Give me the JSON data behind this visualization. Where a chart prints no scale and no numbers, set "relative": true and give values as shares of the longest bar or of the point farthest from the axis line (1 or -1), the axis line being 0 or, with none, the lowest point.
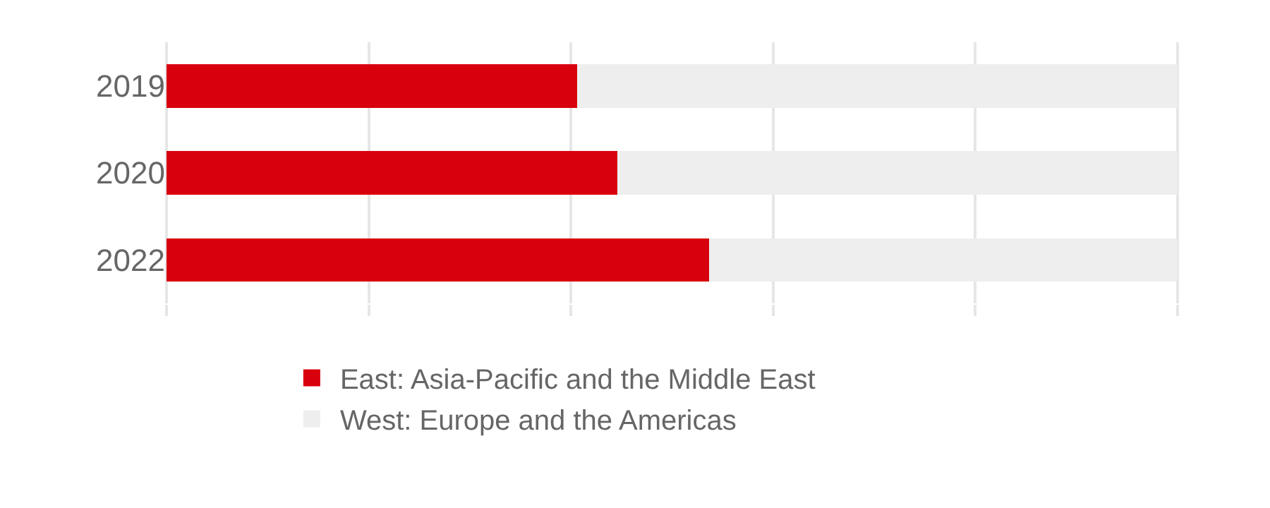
{
  "chart_data": {
    "type": "bar",
    "orientation": "horizontal",
    "stacked": true,
    "relative": true,
    "categories": [
      "2019",
      "2020",
      "2022"
    ],
    "series": [
      {
        "name": "East: Asia-Pacific and the Middle East",
        "color": "#d9000d",
        "values": [
          0.406,
          0.446,
          0.537
        ]
      },
      {
        "name": "West: Europe and the Americas",
        "color": "#eeeeee",
        "values": [
          0.594,
          0.554,
          0.463
        ]
      }
    ],
    "grid": "x",
    "legend": "bottom"
  }
}
